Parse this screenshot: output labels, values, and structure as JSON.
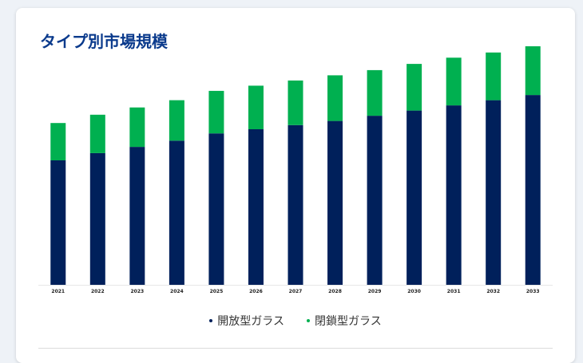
{
  "card": {
    "title": "タイプ別市場規模"
  },
  "colors": {
    "series1": "#00205b",
    "series2": "#00b050",
    "title": "#0a3a8c"
  },
  "chart_data": {
    "type": "bar",
    "stacked": true,
    "title": "タイプ別市場規模",
    "xlabel": "",
    "ylabel": "",
    "categories": [
      "2021",
      "2022",
      "2023",
      "2024",
      "2025",
      "2026",
      "2027",
      "2028",
      "2029",
      "2030",
      "2031",
      "2032",
      "2033"
    ],
    "series": [
      {
        "name": "開放型ガラス",
        "color": "#00205b",
        "values": [
          120,
          127,
          133,
          139,
          146,
          150,
          154,
          158,
          163,
          168,
          173,
          178,
          183
        ]
      },
      {
        "name": "閉鎖型ガラス",
        "color": "#00b050",
        "values": [
          36,
          37,
          38,
          39,
          41,
          42,
          43,
          44,
          44,
          45,
          46,
          46,
          47
        ]
      }
    ],
    "ylim": [
      0,
      240
    ],
    "legend": "bottom",
    "grid": false
  }
}
